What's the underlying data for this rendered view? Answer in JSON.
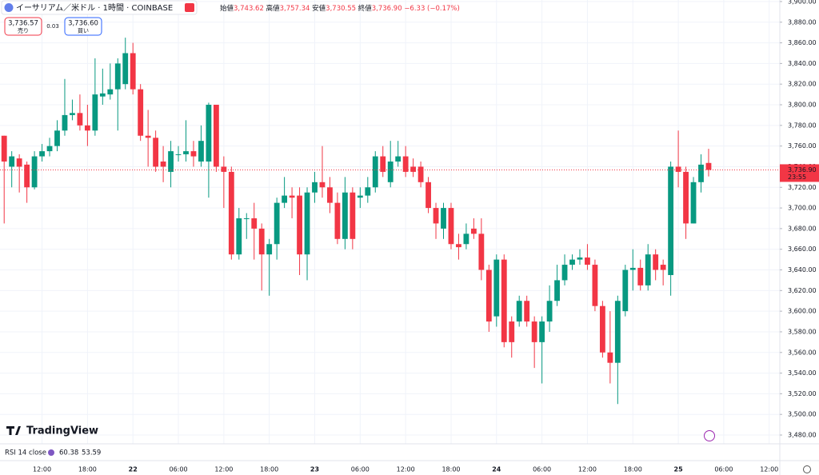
{
  "header": {
    "symbol": "イーサリアム／米ドル · 1時間 · COINBASE",
    "open_label": "始値",
    "open": "3,743.62",
    "high_label": "高値",
    "high": "3,757.34",
    "low_label": "安値",
    "low": "3,730.55",
    "close_label": "終値",
    "close": "3,736.90",
    "change": "−6.33 (−0.17%)",
    "sell_price": "3,736.57",
    "sell_label": "売り",
    "spread": "0.03",
    "buy_price": "3,736.60",
    "buy_label": "買い"
  },
  "branding": "TradingView",
  "rsi": {
    "label": "RSI 14 close",
    "value": "60.38",
    "signal": "53.59"
  },
  "chart_data": {
    "type": "candlestick",
    "up_color": "#089981",
    "down_color": "#f23645",
    "grid": true,
    "xlim": [
      -0.55,
      102.4
    ],
    "xticks": [
      {
        "value": 5,
        "label": "12:00"
      },
      {
        "value": 11,
        "label": "18:00"
      },
      {
        "value": 17,
        "label": "22"
      },
      {
        "value": 23,
        "label": "06:00"
      },
      {
        "value": 29,
        "label": "12:00"
      },
      {
        "value": 35,
        "label": "18:00"
      },
      {
        "value": 41,
        "label": "23"
      },
      {
        "value": 47,
        "label": "06:00"
      },
      {
        "value": 53,
        "label": "12:00"
      },
      {
        "value": 59,
        "label": "18:00"
      },
      {
        "value": 65,
        "label": "24"
      },
      {
        "value": 71,
        "label": "06:00"
      },
      {
        "value": 77,
        "label": "12:00"
      },
      {
        "value": 83,
        "label": "18:00"
      },
      {
        "value": 89,
        "label": "25"
      },
      {
        "value": 95,
        "label": "06:00"
      },
      {
        "value": 101,
        "label": "12:00"
      }
    ],
    "ylim": [
      3471.5,
      3901.5
    ],
    "yticks": [
      {
        "value": 3480,
        "label": "3,480.00"
      },
      {
        "value": 3500,
        "label": "3,500.00"
      },
      {
        "value": 3520,
        "label": "3,520.00"
      },
      {
        "value": 3540,
        "label": "3,540.00"
      },
      {
        "value": 3560,
        "label": "3,560.00"
      },
      {
        "value": 3580,
        "label": "3,580.00"
      },
      {
        "value": 3600,
        "label": "3,600.00"
      },
      {
        "value": 3620,
        "label": "3,620.00"
      },
      {
        "value": 3640,
        "label": "3,640.00"
      },
      {
        "value": 3660,
        "label": "3,660.00"
      },
      {
        "value": 3680,
        "label": "3,680.00"
      },
      {
        "value": 3700,
        "label": "3,700.00"
      },
      {
        "value": 3720,
        "label": "3,720.00"
      },
      {
        "value": 3740,
        "label": "3,740.00"
      },
      {
        "value": 3760,
        "label": "3,760.00"
      },
      {
        "value": 3780,
        "label": "3,780.00"
      },
      {
        "value": 3800,
        "label": "3,800.00"
      },
      {
        "value": 3820,
        "label": "3,820.00"
      },
      {
        "value": 3840,
        "label": "3,840.00"
      },
      {
        "value": 3860,
        "label": "3,860.00"
      },
      {
        "value": 3880,
        "label": "3,880.00"
      },
      {
        "value": 3900,
        "label": "3,900.00"
      }
    ],
    "open": [
      3770,
      3740,
      3748,
      3742,
      3720,
      3750,
      3755,
      3760,
      3775,
      3790,
      3792,
      3780,
      3775,
      3808,
      3810,
      3815,
      3820,
      3850,
      3815,
      3770,
      3768,
      3745,
      3735,
      3752,
      3752,
      3755,
      3745,
      3745,
      3800,
      3740,
      3735,
      3655,
      3690,
      3690,
      3680,
      3655,
      3665,
      3705,
      3712,
      3712,
      3655,
      3715,
      3725,
      3720,
      3705,
      3670,
      3715,
      3710,
      3712,
      3720,
      3750,
      3725,
      3745,
      3750,
      3740,
      3740,
      3725,
      3700,
      3680,
      3700,
      3665,
      3665,
      3680,
      3675,
      3640,
      3595,
      3650,
      3590,
      3590,
      3610,
      3590,
      3570,
      3590,
      3610,
      3630,
      3645,
      3650,
      3652,
      3645,
      3605,
      3560,
      3550,
      3600,
      3640,
      3642,
      3625,
      3655,
      3645,
      3635,
      3740,
      3735,
      3685,
      3725,
      3743.62
    ],
    "high": [
      3770,
      3755,
      3752,
      3745,
      3755,
      3762,
      3768,
      3785,
      3825,
      3805,
      3810,
      3800,
      3845,
      3835,
      3840,
      3845,
      3865,
      3860,
      3820,
      3795,
      3775,
      3760,
      3765,
      3760,
      3785,
      3765,
      3780,
      3802,
      3800,
      3750,
      3740,
      3700,
      3695,
      3705,
      3685,
      3670,
      3710,
      3730,
      3720,
      3720,
      3720,
      3735,
      3760,
      3730,
      3715,
      3730,
      3720,
      3720,
      3730,
      3755,
      3760,
      3765,
      3765,
      3760,
      3748,
      3745,
      3730,
      3705,
      3705,
      3705,
      3675,
      3685,
      3690,
      3690,
      3645,
      3655,
      3655,
      3595,
      3615,
      3615,
      3595,
      3595,
      3625,
      3645,
      3655,
      3655,
      3660,
      3665,
      3650,
      3610,
      3600,
      3615,
      3645,
      3660,
      3650,
      3665,
      3660,
      3650,
      3745,
      3775,
      3740,
      3730,
      3752,
      3757.34
    ],
    "low": [
      3685,
      3720,
      3715,
      3705,
      3718,
      3745,
      3750,
      3755,
      3770,
      3785,
      3775,
      3760,
      3770,
      3800,
      3805,
      3775,
      3815,
      3810,
      3765,
      3740,
      3735,
      3725,
      3720,
      3745,
      3745,
      3740,
      3740,
      3710,
      3735,
      3700,
      3650,
      3650,
      3670,
      3650,
      3620,
      3615,
      3650,
      3700,
      3690,
      3635,
      3630,
      3705,
      3710,
      3695,
      3665,
      3660,
      3660,
      3700,
      3705,
      3715,
      3730,
      3720,
      3740,
      3730,
      3730,
      3720,
      3695,
      3670,
      3670,
      3660,
      3650,
      3660,
      3670,
      3630,
      3580,
      3585,
      3565,
      3555,
      3585,
      3585,
      3545,
      3530,
      3580,
      3605,
      3625,
      3640,
      3645,
      3640,
      3600,
      3555,
      3530,
      3510,
      3595,
      3620,
      3620,
      3620,
      3630,
      3625,
      3615,
      3720,
      3670,
      3685,
      3715,
      3730.55
    ],
    "close": [
      3745,
      3750,
      3740,
      3720,
      3750,
      3755,
      3760,
      3775,
      3790,
      3792,
      3780,
      3775,
      3810,
      3811,
      3815,
      3840,
      3850,
      3815,
      3770,
      3768,
      3740,
      3740,
      3755,
      3752,
      3755,
      3750,
      3765,
      3800,
      3740,
      3735,
      3655,
      3690,
      3690,
      3680,
      3655,
      3665,
      3705,
      3712,
      3710,
      3655,
      3715,
      3725,
      3720,
      3705,
      3670,
      3715,
      3670,
      3712,
      3720,
      3750,
      3735,
      3745,
      3750,
      3735,
      3735,
      3725,
      3700,
      3685,
      3700,
      3665,
      3662,
      3675,
      3675,
      3640,
      3590,
      3650,
      3570,
      3570,
      3610,
      3590,
      3570,
      3590,
      3610,
      3630,
      3645,
      3650,
      3652,
      3645,
      3605,
      3560,
      3550,
      3610,
      3640,
      3642,
      3625,
      3655,
      3640,
      3640,
      3740,
      3735,
      3685,
      3725,
      3742,
      3736.9
    ],
    "last_price": {
      "value": 3736.9,
      "label": "3,736.90",
      "countdown": "23:55"
    }
  }
}
